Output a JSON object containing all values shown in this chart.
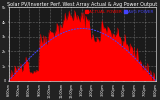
{
  "title": "Solar PV/Inverter Perf. West Array Actual & Avg Power Output",
  "title_fontsize": 3.5,
  "bg_color": "#222222",
  "plot_bg_color": "#1a1a1a",
  "grid_color": "#555555",
  "actual_color": "#ff0000",
  "avg_color": "#4444ff",
  "legend_actual_color": "#ff2222",
  "legend_avg_color": "#2222ff",
  "legend_actual": "ACTUAL POWER",
  "legend_avg": "AVG POWER",
  "legend_fontsize": 3.0,
  "tick_fontsize": 2.5,
  "xlabel_fontsize": 2.4,
  "ylim": [
    0,
    5000
  ],
  "yticks": [
    0,
    1000,
    2000,
    3000,
    4000,
    5000
  ],
  "ytick_labels": [
    "0",
    "1k",
    "2k",
    "3k",
    "4k",
    "5k"
  ],
  "num_points": 144,
  "x_labels": [
    "6:00am",
    "7:00am",
    "8:00am",
    "9:00am",
    "10:00am",
    "11:00am",
    "12:00pm",
    "1:00pm",
    "2:00pm",
    "3:00pm",
    "4:00pm",
    "5:00pm",
    "6:00pm",
    "7:00pm",
    "8:00pm"
  ]
}
